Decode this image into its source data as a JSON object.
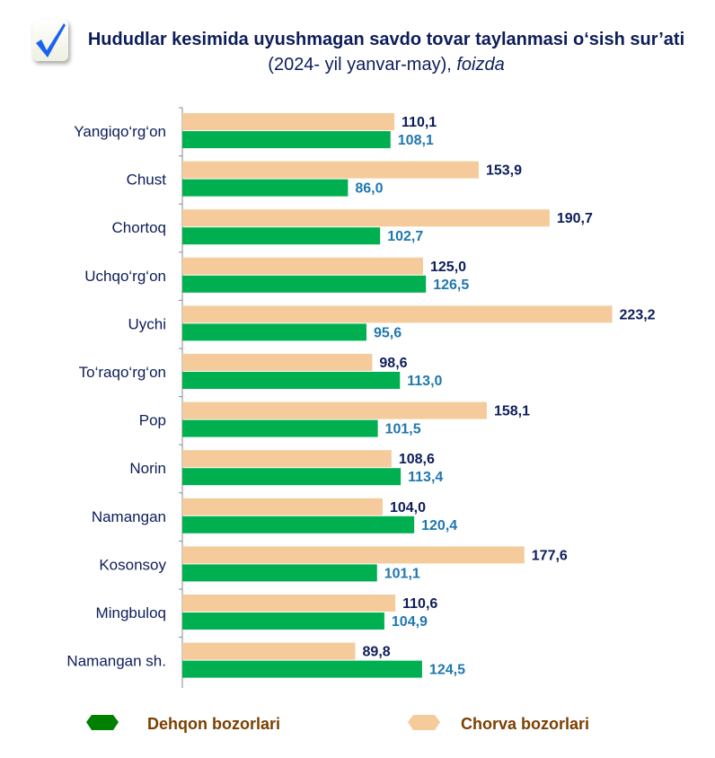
{
  "chart_data": {
    "type": "bar",
    "orientation": "horizontal",
    "title_bold": "Hududlar kesimida uyushmagan savdo tovar taylanmasi o‘sish sur’ati",
    "title_normal": " (2024- yil yanvar-may), ",
    "title_italic": "foizda",
    "categories": [
      "Yangiqo‘rg‘on",
      "Chust",
      "Chortoq",
      "Uchqo‘rg‘on",
      "Uychi",
      "To‘raqo‘rg‘on",
      "Pop",
      "Norin",
      "Namangan",
      "Kosonsoy",
      "Mingbuloq",
      "Namangan sh."
    ],
    "series": [
      {
        "name": "Chorva bozorlari",
        "color": "#f5cb9c",
        "label_color": "#0d1d5a",
        "values": [
          110.1,
          153.9,
          190.7,
          125.0,
          223.2,
          98.6,
          158.1,
          108.6,
          104.0,
          177.6,
          110.6,
          89.8
        ],
        "labels": [
          "110,1",
          "153,9",
          "190,7",
          "125,0",
          "223,2",
          "98,6",
          "158,1",
          "108,6",
          "104,0",
          "177,6",
          "110,6",
          "89,8"
        ]
      },
      {
        "name": "Dehqon bozorlari",
        "color": "#00b050",
        "label_color": "#1f77b0",
        "values": [
          108.1,
          86.0,
          102.7,
          126.5,
          95.6,
          113.0,
          101.5,
          113.4,
          120.4,
          101.1,
          104.9,
          124.5
        ],
        "labels": [
          "108,1",
          "86,0",
          "102,7",
          "126,5",
          "95,6",
          "113,0",
          "101,5",
          "113,4",
          "120,4",
          "101,1",
          "104,9",
          "124,5"
        ]
      }
    ],
    "legend": [
      {
        "name": "Dehqon bozorlari",
        "color": "#008000"
      },
      {
        "name": "Chorva bozorlari",
        "color": "#f5cb9c"
      }
    ],
    "legend_text_color": "#7b3f00",
    "xlim": [
      0,
      260
    ],
    "grid": false,
    "legend_position": "bottom"
  }
}
